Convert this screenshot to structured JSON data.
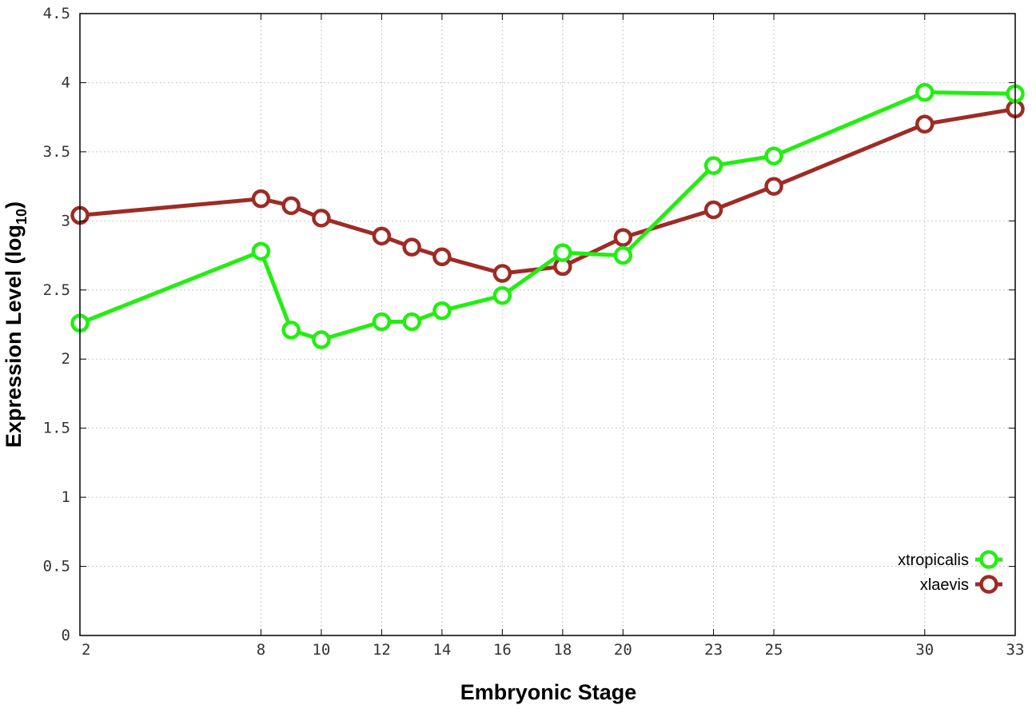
{
  "chart_data": {
    "type": "line",
    "xlabel": "Embryonic Stage",
    "ylabel_main": "Expression Level (log",
    "ylabel_sub": "10",
    "ylabel_close": ")",
    "xlim": [
      2,
      33
    ],
    "ylim": [
      0,
      4.5
    ],
    "x_ticks": [
      2,
      8,
      10,
      12,
      14,
      16,
      18,
      20,
      23,
      25,
      30,
      33
    ],
    "x_tick_labels": [
      "2",
      "8",
      "10",
      "12",
      "14",
      "16",
      "18",
      "20",
      "23",
      "25",
      "30",
      "33"
    ],
    "y_ticks": [
      0,
      0.5,
      1,
      1.5,
      2,
      2.5,
      3,
      3.5,
      4,
      4.5
    ],
    "y_tick_labels": [
      "0",
      "0.5",
      "1",
      "1.5",
      "2",
      "2.5",
      "3",
      "3.5",
      "4",
      "4.5"
    ],
    "grid": true,
    "legend_position": "bottom-right",
    "x": [
      2,
      8,
      9,
      10,
      12,
      13,
      14,
      16,
      18,
      20,
      23,
      25,
      30,
      33
    ],
    "series": [
      {
        "name": "xtropicalis",
        "color": "#22ee11",
        "values": [
          2.26,
          2.78,
          2.21,
          2.14,
          2.27,
          2.27,
          2.35,
          2.46,
          2.77,
          2.75,
          3.4,
          3.47,
          3.93,
          3.92
        ]
      },
      {
        "name": "xlaevis",
        "color": "#9e2b25",
        "values": [
          3.04,
          3.16,
          3.11,
          3.02,
          2.89,
          2.81,
          2.74,
          2.62,
          2.67,
          2.88,
          3.08,
          3.25,
          3.7,
          3.81
        ]
      }
    ]
  }
}
